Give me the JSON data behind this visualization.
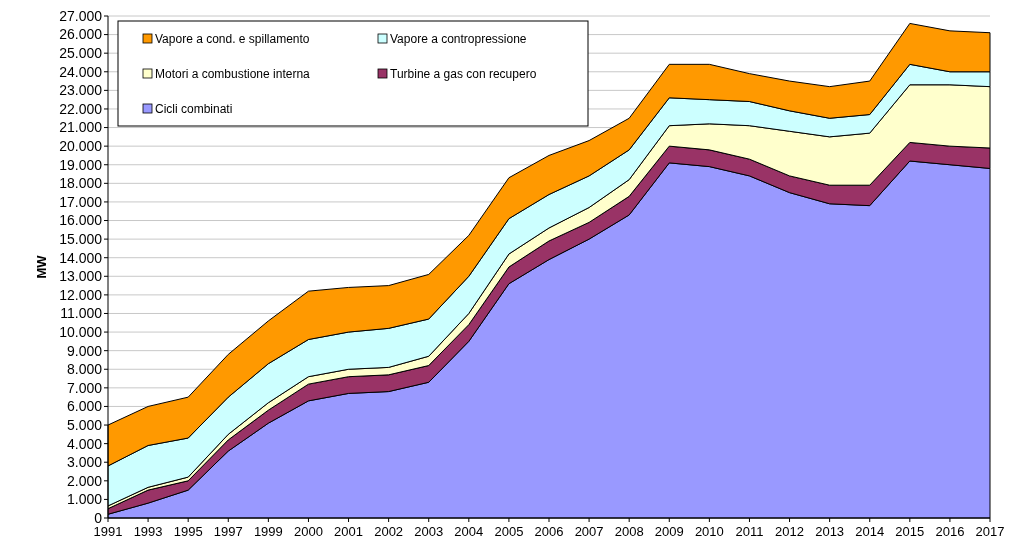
{
  "chart_data": {
    "type": "area",
    "stacked": true,
    "ylabel": "MW",
    "grid": "y",
    "legend": "top left",
    "categories": [
      "1991",
      "1993",
      "1995",
      "1997",
      "1999",
      "2000",
      "2001",
      "2002",
      "2003",
      "2004",
      "2005",
      "2006",
      "2007",
      "2008",
      "2009",
      "2010",
      "2011",
      "2012",
      "2013",
      "2014",
      "2015",
      "2016",
      "2017"
    ],
    "ylim": [
      0,
      27000
    ],
    "yticks": [
      0,
      {
        "value": 1000,
        "label": "1.000"
      },
      {
        "value": 2000,
        "label": "2.000"
      },
      {
        "value": 3000,
        "label": "3.000"
      },
      {
        "value": 4000,
        "label": "4.000"
      },
      {
        "value": 5000,
        "label": "5.000"
      },
      {
        "value": 6000,
        "label": "6.000"
      },
      {
        "value": 7000,
        "label": "7.000"
      },
      {
        "value": 8000,
        "label": "8.000"
      },
      {
        "value": 9000,
        "label": "9.000"
      },
      {
        "value": 10000,
        "label": "10.000"
      },
      {
        "value": 11000,
        "label": "11.000"
      },
      {
        "value": 12000,
        "label": "12.000"
      },
      {
        "value": 13000,
        "label": "13.000"
      },
      {
        "value": 14000,
        "label": "14.000"
      },
      {
        "value": 15000,
        "label": "15.000"
      },
      {
        "value": 16000,
        "label": "16.000"
      },
      {
        "value": 17000,
        "label": "17.000"
      },
      {
        "value": 18000,
        "label": "18.000"
      },
      {
        "value": 19000,
        "label": "19.000"
      },
      {
        "value": 20000,
        "label": "20.000"
      },
      {
        "value": 21000,
        "label": "21.000"
      },
      {
        "value": 22000,
        "label": "22.000"
      },
      {
        "value": 23000,
        "label": "23.000"
      },
      {
        "value": 24000,
        "label": "24.000"
      },
      {
        "value": 25000,
        "label": "25.000"
      },
      {
        "value": 26000,
        "label": "26.000"
      },
      {
        "value": 27000,
        "label": "27.000"
      }
    ],
    "series": [
      {
        "name": "Cicli combinati",
        "color": "#9999ff",
        "values": [
          200,
          800,
          1500,
          3600,
          5100,
          6300,
          6700,
          6800,
          7300,
          9500,
          12600,
          13900,
          15000,
          16300,
          19100,
          18900,
          18400,
          17500,
          16900,
          16800,
          19200,
          19000,
          18800
        ]
      },
      {
        "name": "Turbine a gas con recupero",
        "color": "#993366",
        "values": [
          300,
          700,
          500,
          600,
          700,
          900,
          900,
          900,
          900,
          900,
          900,
          1000,
          900,
          1000,
          900,
          900,
          900,
          900,
          1000,
          1100,
          1000,
          1000,
          1100
        ]
      },
      {
        "name": "Motori a combustione interna",
        "color": "#ffffcc",
        "values": [
          150,
          150,
          200,
          300,
          400,
          400,
          400,
          400,
          500,
          600,
          700,
          700,
          800,
          900,
          1100,
          1400,
          1800,
          2400,
          2600,
          2800,
          3100,
          3300,
          3300
        ]
      },
      {
        "name": "Vapore a contropressione",
        "color": "#ccffff",
        "values": [
          2150,
          2250,
          2100,
          2000,
          2100,
          2000,
          2000,
          2100,
          2000,
          2000,
          1900,
          1800,
          1700,
          1600,
          1500,
          1300,
          1300,
          1100,
          1000,
          1000,
          1100,
          700,
          800
        ]
      },
      {
        "name": "Vapore a cond. e spillamento",
        "color": "#ff9900",
        "values": [
          2200,
          2100,
          2200,
          2300,
          2300,
          2600,
          2400,
          2300,
          2400,
          2200,
          2200,
          2100,
          1900,
          1700,
          1800,
          1900,
          1500,
          1600,
          1700,
          1800,
          2200,
          2200,
          2100
        ]
      }
    ]
  }
}
